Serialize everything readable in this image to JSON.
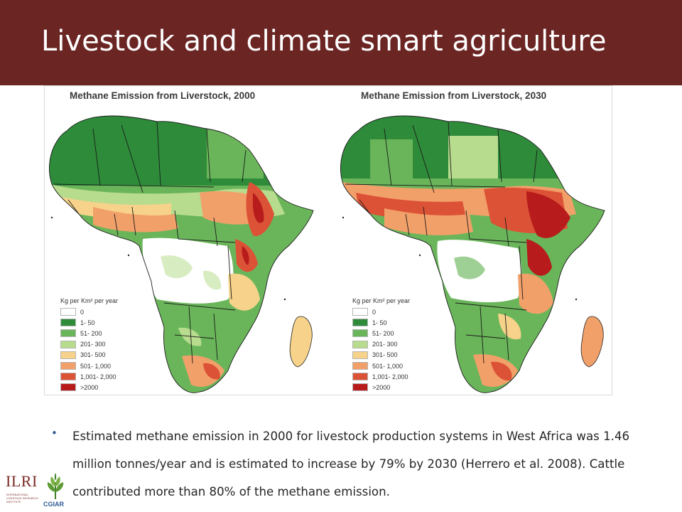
{
  "slide": {
    "title": "Livestock and climate smart agriculture",
    "bullet": "Estimated methane emission in 2000 for livestock production systems in West Africa was 1.46 million tonnes/year and is estimated to increase by 79% by 2030 (Herrero et al. 2008). Cattle contributed more than 80% of the methane emission."
  },
  "maps": [
    {
      "title": "Methane Emission from Liverstock, 2000"
    },
    {
      "title": "Methane Emission from Liverstock, 2030"
    }
  ],
  "legend": {
    "title": "Kg per Km² per year",
    "items": [
      {
        "label": "0",
        "color": "#ffffff"
      },
      {
        "label": "1- 50",
        "color": "#2e8b3a"
      },
      {
        "label": "51- 200",
        "color": "#6ab55a"
      },
      {
        "label": "201- 300",
        "color": "#b8dc8e"
      },
      {
        "label": "301- 500",
        "color": "#f6d28a"
      },
      {
        "label": "501- 1,000",
        "color": "#f2a06a"
      },
      {
        "label": "1,001- 2,000",
        "color": "#dc5236"
      },
      {
        "label": ">2000",
        "color": "#b71b1c"
      }
    ]
  },
  "logos": {
    "ilri": "ILRI",
    "ilri_sub": "INTERNATIONAL LIVESTOCK RESEARCH INSTITUTE",
    "cgiar": "CGIAR"
  }
}
